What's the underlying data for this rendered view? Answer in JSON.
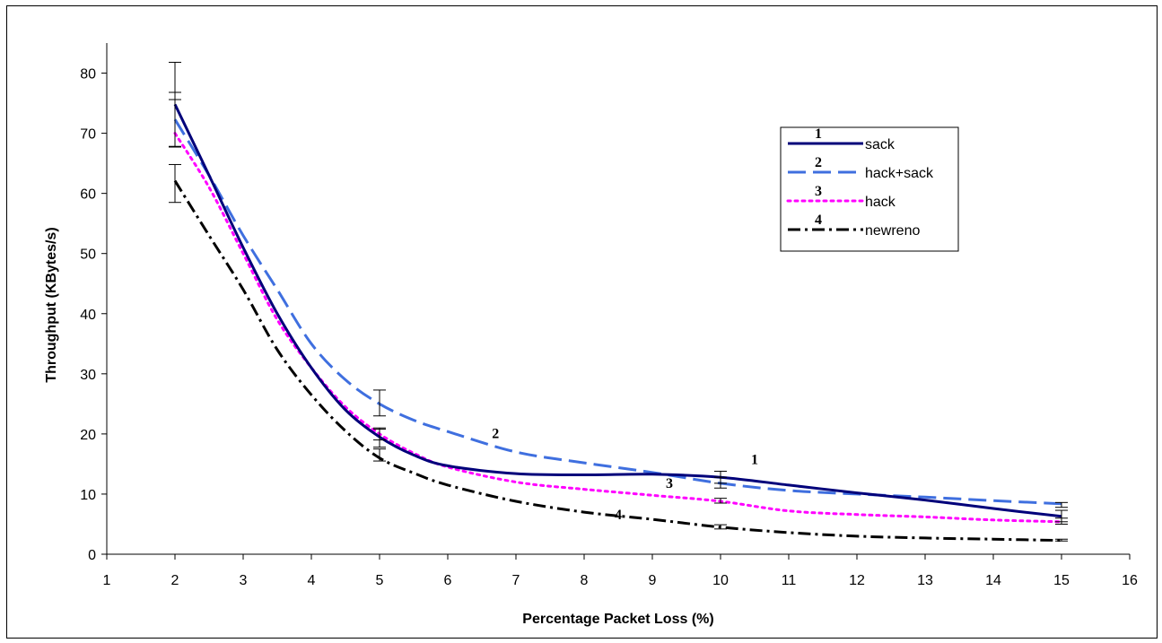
{
  "chart_data": {
    "type": "line",
    "title": "",
    "xlabel": "Percentage Packet Loss (%)",
    "ylabel": "Throughput (KBytes/s)",
    "xlim": [
      1,
      16
    ],
    "ylim": [
      0,
      85
    ],
    "x_ticks": [
      1,
      2,
      3,
      4,
      5,
      6,
      7,
      8,
      9,
      10,
      11,
      12,
      13,
      14,
      15,
      16
    ],
    "y_ticks": [
      0,
      10,
      20,
      30,
      40,
      50,
      60,
      70,
      80
    ],
    "grid": false,
    "legend_position": "top-right",
    "x": [
      2,
      5,
      10,
      15
    ],
    "series": [
      {
        "name": "sack",
        "marker": "1",
        "values": [
          74.8,
          19.5,
          12.8,
          6.3
        ],
        "error_low": [
          67.8,
          17.8,
          11.8,
          5.4
        ],
        "error_high": [
          81.8,
          21.0,
          13.8,
          7.3
        ],
        "color": "#00007a",
        "dash": "solid"
      },
      {
        "name": "hack+sack",
        "marker": "2",
        "values": [
          72.3,
          25.0,
          11.8,
          8.4
        ],
        "error_low": [
          67.8,
          23.0,
          11.0,
          7.8
        ],
        "error_high": [
          76.8,
          27.3,
          12.8,
          8.6
        ],
        "color": "#3f6fdf",
        "dash": "long-dash"
      },
      {
        "name": "hack",
        "marker": "3",
        "values": [
          70.0,
          20.0,
          8.8,
          5.4
        ],
        "error_low": [
          67.7,
          19.0,
          8.5,
          5.0
        ],
        "error_high": [
          75.6,
          20.8,
          9.3,
          6.0
        ],
        "color": "#ff00ff",
        "dash": "dotted"
      },
      {
        "name": "newreno",
        "marker": "4",
        "values": [
          62.1,
          16.0,
          4.5,
          2.3
        ],
        "error_low": [
          58.5,
          15.5,
          4.2,
          2.2
        ],
        "error_high": [
          64.8,
          17.5,
          4.9,
          2.5
        ],
        "color": "#000000",
        "dash": "dash-dot"
      }
    ],
    "curve_points": {
      "sack": [
        [
          2,
          74.8
        ],
        [
          2.5,
          63
        ],
        [
          3,
          51
        ],
        [
          3.5,
          40
        ],
        [
          4,
          31
        ],
        [
          4.5,
          24
        ],
        [
          5,
          19.5
        ],
        [
          5.5,
          16.5
        ],
        [
          6,
          14.7
        ],
        [
          7,
          13.4
        ],
        [
          8,
          13.2
        ],
        [
          9,
          13.3
        ],
        [
          10,
          12.8
        ],
        [
          11,
          11.5
        ],
        [
          12,
          10.2
        ],
        [
          13,
          9.0
        ],
        [
          14,
          7.6
        ],
        [
          15,
          6.3
        ]
      ],
      "hack+sack": [
        [
          2,
          72.3
        ],
        [
          2.5,
          63
        ],
        [
          3,
          53
        ],
        [
          3.5,
          44
        ],
        [
          4,
          35
        ],
        [
          4.5,
          29
        ],
        [
          5,
          25.0
        ],
        [
          5.5,
          22.3
        ],
        [
          6,
          20.4
        ],
        [
          7,
          17.0
        ],
        [
          8,
          15.2
        ],
        [
          9,
          13.6
        ],
        [
          10,
          11.8
        ],
        [
          11,
          10.6
        ],
        [
          12,
          10.0
        ],
        [
          13,
          9.5
        ],
        [
          14,
          8.9
        ],
        [
          15,
          8.4
        ]
      ],
      "hack": [
        [
          2,
          70.0
        ],
        [
          2.5,
          61
        ],
        [
          3,
          50
        ],
        [
          3.5,
          39
        ],
        [
          4,
          31
        ],
        [
          4.5,
          24.5
        ],
        [
          5,
          20.0
        ],
        [
          5.5,
          16.8
        ],
        [
          6,
          14.5
        ],
        [
          7,
          12.0
        ],
        [
          8,
          10.8
        ],
        [
          9,
          9.8
        ],
        [
          10,
          8.8
        ],
        [
          11,
          7.2
        ],
        [
          12,
          6.6
        ],
        [
          13,
          6.2
        ],
        [
          14,
          5.7
        ],
        [
          15,
          5.4
        ]
      ],
      "newreno": [
        [
          2,
          62.1
        ],
        [
          2.5,
          53
        ],
        [
          3,
          44
        ],
        [
          3.5,
          34
        ],
        [
          4,
          26.5
        ],
        [
          4.5,
          20.5
        ],
        [
          5,
          16.0
        ],
        [
          5.5,
          13.5
        ],
        [
          6,
          11.5
        ],
        [
          7,
          8.8
        ],
        [
          8,
          7.0
        ],
        [
          9,
          5.8
        ],
        [
          10,
          4.5
        ],
        [
          11,
          3.6
        ],
        [
          12,
          3.0
        ],
        [
          13,
          2.7
        ],
        [
          14,
          2.5
        ],
        [
          15,
          2.3
        ]
      ]
    },
    "annotations": [
      {
        "text": "2",
        "x": 6.7,
        "y": 19.3
      },
      {
        "text": "1",
        "x": 10.5,
        "y": 15.0
      },
      {
        "text": "3",
        "x": 9.25,
        "y": 11.0
      },
      {
        "text": "4",
        "x": 8.5,
        "y": 5.8
      }
    ]
  }
}
